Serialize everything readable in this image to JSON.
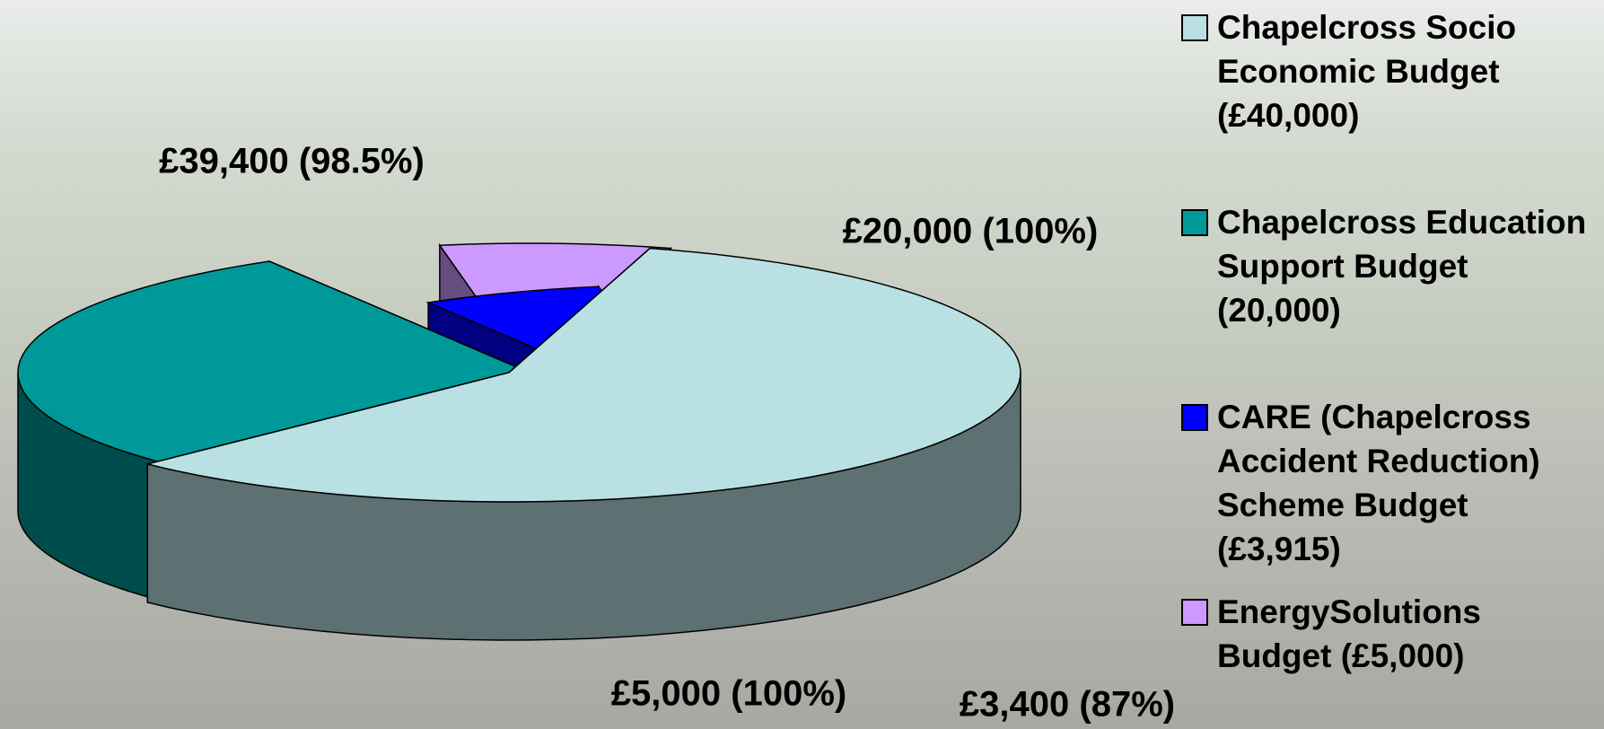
{
  "chart_data": {
    "type": "pie3d",
    "categories": [
      "Chapelcross Socio Economic Budget (£40,000)",
      "Chapelcross Education Support Budget (20,000)",
      "CARE (Chapelcross Accident Reduction) Scheme Budget (£3,915)",
      "EnergySolutions Budget (£5,000)"
    ],
    "values": [
      40000,
      20000,
      3915,
      5000
    ],
    "colors": [
      "#b9e0e3",
      "#009999",
      "#0000ff",
      "#cc99ff"
    ],
    "slice_labels": [
      "£39,400 (98.5%)",
      "£20,000 (100%)",
      "£3,400 (87%)",
      "£5,000 (100%)"
    ],
    "legend": "right"
  }
}
